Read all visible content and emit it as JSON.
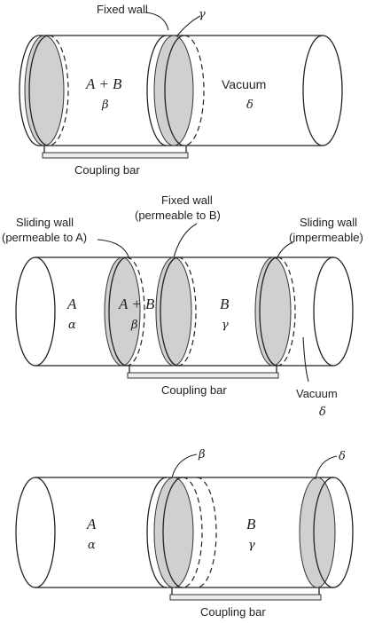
{
  "figure1": {
    "fixed_wall_label": "Fixed wall",
    "gamma_label": "γ",
    "region_left_species": "A + B",
    "region_left_phase": "β",
    "region_right_name": "Vacuum",
    "region_right_phase": "δ",
    "coupling_bar_label": "Coupling bar"
  },
  "figure2": {
    "sliding_wall_left_line1": "Sliding wall",
    "sliding_wall_left_line2": "(permeable to A)",
    "fixed_wall_line1": "Fixed wall",
    "fixed_wall_line2": "(permeable to B)",
    "sliding_wall_right_line1": "Sliding wall",
    "sliding_wall_right_line2": "(impermeable)",
    "region1_species": "A",
    "region1_phase": "α",
    "region2_species": "A + B",
    "region2_phase": "β",
    "region3_species": "B",
    "region3_phase": "γ",
    "vacuum_label": "Vacuum",
    "vacuum_phase": "δ",
    "coupling_bar_label": "Coupling bar"
  },
  "figure3": {
    "beta_label": "β",
    "delta_label": "δ",
    "region_left_species": "A",
    "region_left_phase": "α",
    "region_right_species": "B",
    "region_right_phase": "γ",
    "coupling_bar_label": "Coupling bar"
  }
}
